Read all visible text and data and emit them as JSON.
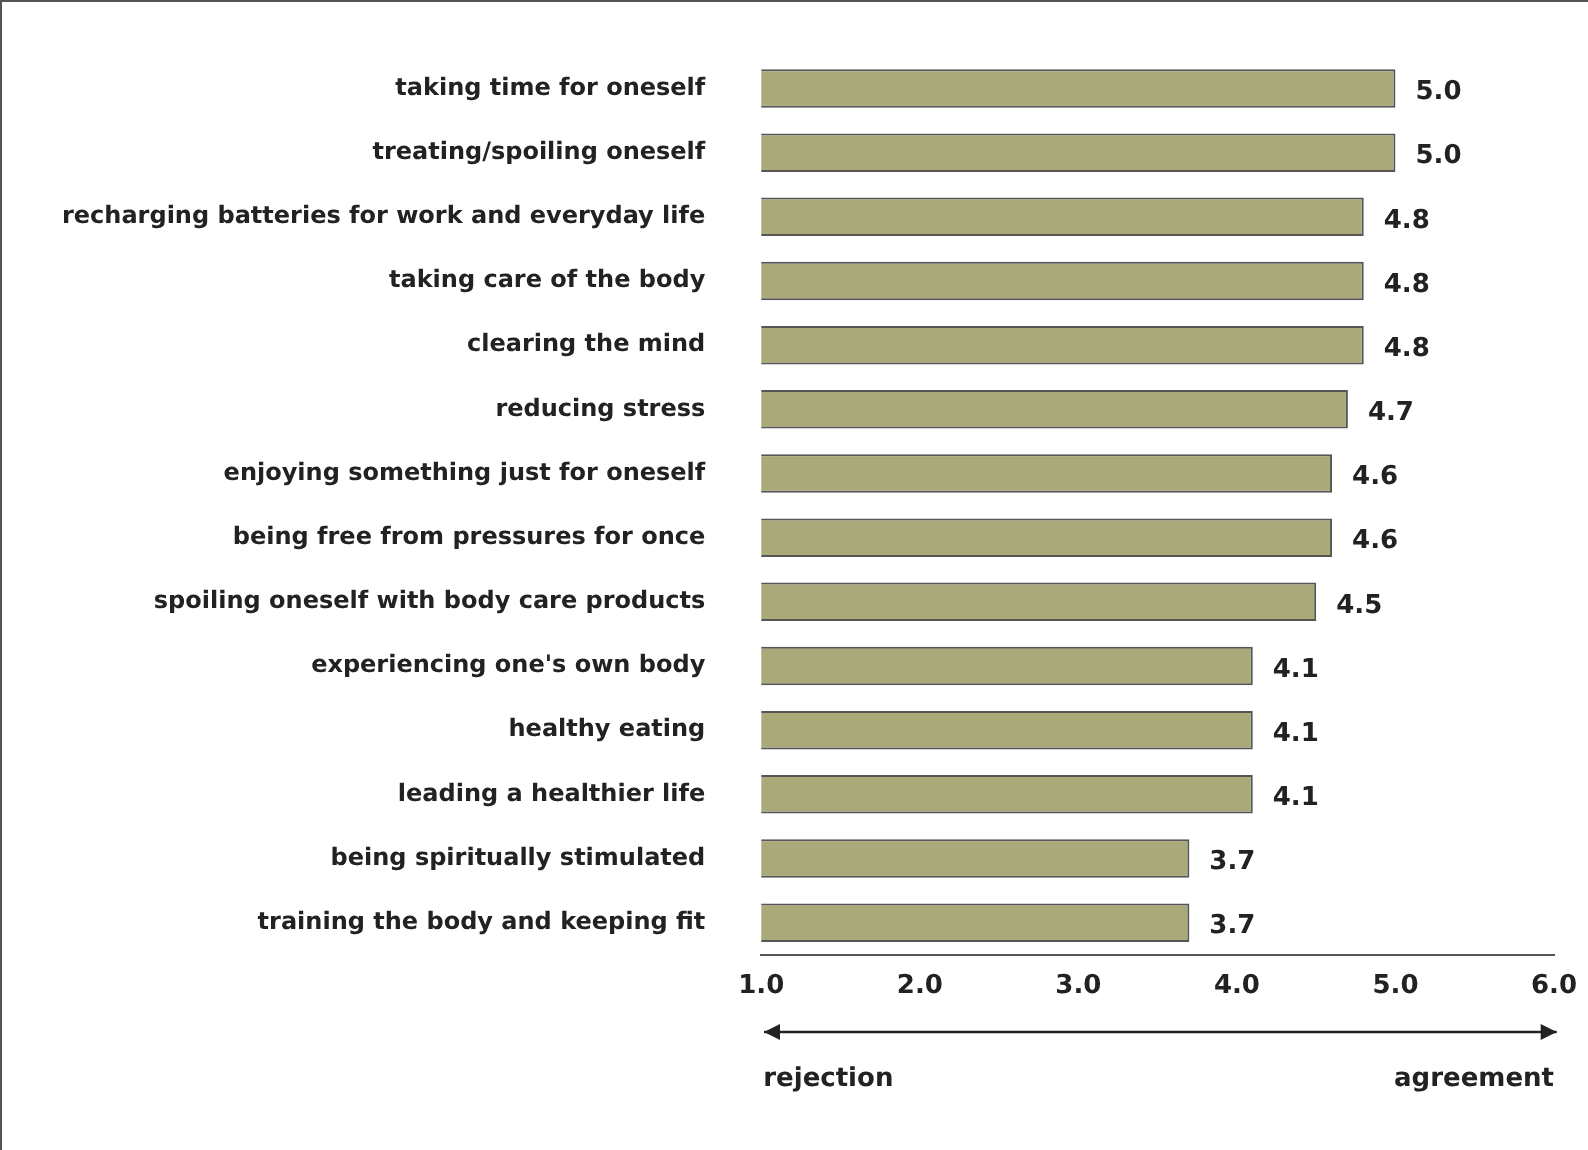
{
  "chart_data": {
    "type": "bar",
    "orientation": "horizontal",
    "categories": [
      "taking time for oneself",
      "treating/spoiling oneself",
      "recharging batteries for work and everyday life",
      "taking care of the body",
      "clearing the mind",
      "reducing stress",
      "enjoying something just for oneself",
      "being free from pressures for once",
      "spoiling oneself with body care products",
      "experiencing one's own body",
      "healthy eating",
      "leading a healthier life",
      "being spiritually stimulated",
      "training the body and keeping fit"
    ],
    "values": [
      5.0,
      5.0,
      4.8,
      4.8,
      4.8,
      4.7,
      4.6,
      4.6,
      4.5,
      4.1,
      4.1,
      4.1,
      3.7,
      3.7
    ],
    "color": "#a9a97a",
    "xlim": [
      1,
      6
    ],
    "xticks": [
      {
        "value": 1,
        "label": "1.0"
      },
      {
        "value": 2,
        "label": "2.0"
      },
      {
        "value": 3,
        "label": "3.0"
      },
      {
        "value": 4,
        "label": "4.0"
      },
      {
        "value": 5,
        "label": "5.0"
      },
      {
        "value": 6,
        "label": "6.0"
      }
    ],
    "value_labels": [
      "5.0",
      "5.0",
      "4.8",
      "4.8",
      "4.8",
      "4.7",
      "4.6",
      "4.6",
      "4.5",
      "4.1",
      "4.1",
      "4.1",
      "3.7",
      "3.7"
    ],
    "grid": false,
    "annotations": [
      "rejection",
      "agreement"
    ]
  }
}
